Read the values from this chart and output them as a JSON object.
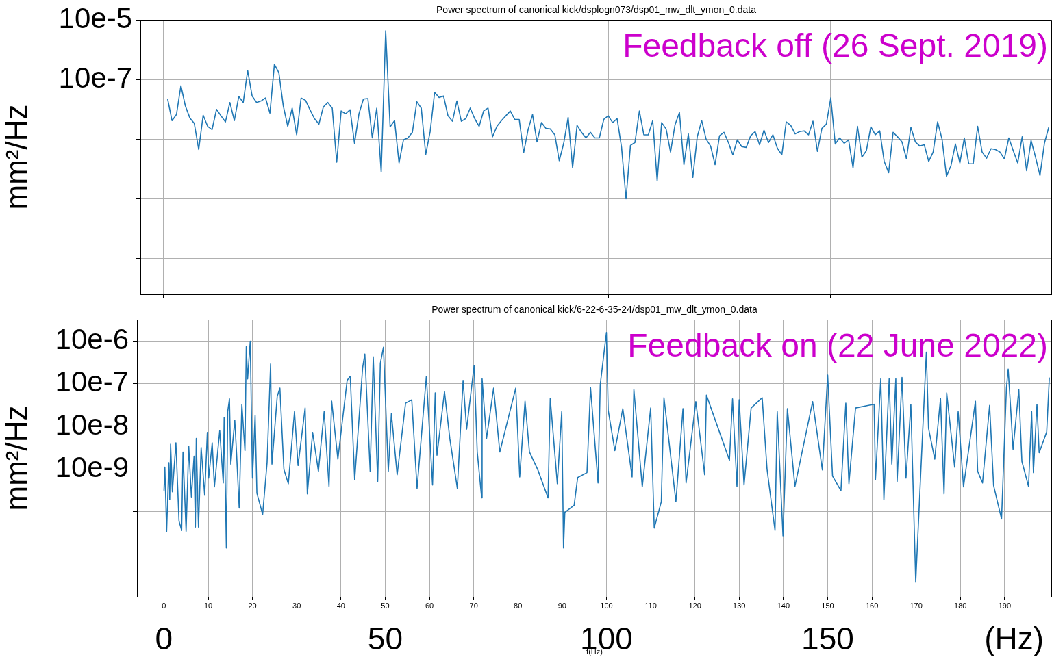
{
  "chart_data": [
    {
      "type": "line",
      "title": "Power spectrum of canonical kick/dsplogn073/dsp01_mw_dlt_ymon_0.data",
      "subtitle": "Feedback off (26 Sept. 2019)",
      "ylabel": "mm²/Hz",
      "color": "#1f77b4",
      "log": true,
      "grid": true,
      "tick_labels": "y",
      "categories": [
        null,
        null,
        null,
        null,
        null,
        null,
        null,
        null,
        null,
        null,
        null,
        null,
        null,
        null,
        null,
        null,
        null,
        null,
        null,
        null,
        null,
        null,
        null,
        null,
        null,
        null,
        null,
        null,
        null,
        null,
        null,
        null,
        null,
        null,
        null,
        null,
        null,
        null,
        null,
        null,
        null,
        null,
        null,
        null,
        null,
        null,
        null,
        null,
        null,
        null,
        null,
        null,
        null,
        null,
        null,
        null,
        null,
        null,
        null,
        null,
        null,
        null,
        null,
        null,
        null,
        null,
        null,
        null,
        null,
        null,
        null,
        null,
        null,
        null,
        null,
        null,
        null,
        null,
        null,
        null,
        null,
        null,
        null,
        null,
        null,
        null,
        null,
        null,
        null,
        null,
        null,
        null,
        null,
        null,
        null,
        null,
        null,
        null,
        null,
        null,
        null,
        null,
        null,
        null,
        null,
        null,
        null,
        null,
        null,
        null,
        null,
        null,
        null,
        null,
        null,
        null,
        null,
        null,
        null,
        null,
        null,
        null,
        null,
        null,
        null,
        null,
        null,
        null,
        null,
        null,
        null,
        null,
        null,
        null,
        null,
        null,
        null,
        null,
        null,
        null,
        null,
        null,
        null,
        null,
        null,
        null,
        null,
        null,
        null,
        null,
        null,
        null,
        null,
        null,
        null,
        null,
        null,
        null,
        null,
        null,
        null,
        null,
        null,
        null,
        null,
        null,
        null,
        null,
        null,
        null,
        null,
        null,
        null,
        null,
        null,
        null,
        null,
        null,
        null,
        null,
        null,
        null,
        null,
        null,
        null,
        null,
        null,
        null,
        null,
        null,
        null,
        null,
        null,
        null,
        null,
        null,
        null,
        null,
        null
      ],
      "ylim": [
        6.3e-14,
        0.0001
      ],
      "yticks": [
        {
          "value": 0.0001,
          "label": "10e-5"
        },
        {
          "value": 1e-06,
          "label": "10e-7"
        },
        {
          "value": 1e-08,
          "label": null
        },
        {
          "value": 1e-10,
          "label": null
        },
        {
          "value": 1e-12,
          "label": null
        }
      ],
      "values": [
        2.3e-07,
        4.2e-08,
        6.7e-08,
        6.2e-07,
        1.3e-07,
        5.2e-08,
        3.4e-08,
        4.5e-09,
        6.4e-08,
        2.7e-08,
        2.1e-08,
        1e-07,
        6.1e-08,
        3.8e-08,
        1.7e-07,
        4.2e-08,
        2.7e-07,
        1.7e-07,
        2e-06,
        2.8e-07,
        1.7e-07,
        1.9e-07,
        2.4e-07,
        7.5e-08,
        3.2e-06,
        1.7e-06,
        1.3e-07,
        2.7e-08,
        1.1e-07,
        1.4e-08,
        2.4e-07,
        2e-07,
        9.7e-08,
        4.9e-08,
        3.2e-08,
        1.2e-07,
        1.7e-07,
        1.1e-07,
        1.7e-09,
        8.8e-08,
        7.1e-08,
        9.7e-08,
        7.3e-09,
        7.1e-08,
        2.2e-07,
        2.3e-07,
        1.1e-08,
        1.1e-07,
        7.9e-10,
        4.3e-05,
        2.6e-08,
        4.2e-08,
        1.6e-09,
        9.5e-09,
        1.1e-08,
        1.7e-08,
        1.8e-07,
        1.1e-07,
        3.1e-09,
        1.8e-08,
        3.7e-07,
        2.5e-07,
        2.8e-07,
        6.1e-08,
        4e-08,
        1.9e-07,
        4e-08,
        4.9e-08,
        1.1e-07,
        4.9e-08,
        2.7e-08,
        8.8e-08,
        1.1e-07,
        1.2e-08,
        2.7e-08,
        4.2e-08,
        6.1e-08,
        8.8e-08,
        4.6e-08,
        4.6e-08,
        3.5e-09,
        2.1e-08,
        6.7e-08,
        8.1e-09,
        3.6e-08,
        2.3e-08,
        2.2e-08,
        1.4e-08,
        1.9e-09,
        7.3e-09,
        5.4e-08,
        1.1e-09,
        2.9e-08,
        1.7e-08,
        1.1e-08,
        1.7e-08,
        1.1e-08,
        1.1e-08,
        4.6e-08,
        6.1e-08,
        3.6e-08,
        4.9e-08,
        5.3e-09,
        1e-10,
        6.2e-09,
        7.7e-09,
        8.8e-08,
        1.4e-08,
        1.4e-08,
        4.2e-08,
        4e-10,
        3.6e-08,
        2.2e-08,
        3.7e-09,
        3e-08,
        7.9e-08,
        1.4e-09,
        1.5e-08,
        5.2e-10,
        1.2e-08,
        4.2e-08,
        1e-08,
        5.9e-09,
        1.4e-09,
        1.3e-08,
        1.7e-08,
        7.7e-09,
        3e-09,
        9.5e-09,
        5.6e-09,
        5.3e-09,
        1.3e-08,
        1.8e-08,
        6.5e-09,
        2e-08,
        7.7e-09,
        1.4e-08,
        5e-09,
        3e-09,
        3.8e-08,
        2.9e-08,
        1.5e-08,
        1.8e-08,
        1.9e-08,
        1.4e-08,
        4e-08,
        3.9e-09,
        2.3e-08,
        3.2e-08,
        2.4e-07,
        6.9e-09,
        1.1e-08,
        7.3e-09,
        9.5e-09,
        1.1e-09,
        2.7e-08,
        2.5e-09,
        4.1e-09,
        2.6e-08,
        1.4e-08,
        1.9e-08,
        1.8e-09,
        7.5e-10,
        1.7e-08,
        1.2e-08,
        8.1e-09,
        2.2e-09,
        2.5e-08,
        8.1e-09,
        5.9e-09,
        6.5e-09,
        1.8e-09,
        3.7e-09,
        3.8e-08,
        1e-08,
        5.7e-10,
        1.3e-09,
        6.9e-09,
        1.6e-09,
        1.1e-08,
        1.5e-09,
        1.5e-09,
        2.7e-08,
        3.7e-09,
        2.3e-09,
        4.8e-09,
        4.5e-09,
        3.7e-09,
        2.2e-09,
        1.1e-08,
        4.1e-09,
        1.6e-09,
        1.2e-08,
        8.8e-10,
        9e-09,
        2.5e-09,
        6.1e-10,
        7.3e-09,
        2.6e-08
      ]
    },
    {
      "type": "line",
      "title": "Power spectrum of canonical kick/6-22-6-35-24/dsp01_mw_dlt_ymon_0.data",
      "subtitle": "Feedback on (22 June 2022)",
      "xlabel": "f(Hz)",
      "ylabel": "mm²/Hz",
      "color": "#1f77b4",
      "log": true,
      "grid": true,
      "annotations": [
        "0",
        "50",
        "100",
        "150",
        "(Hz)"
      ],
      "xlim": [
        -6.1,
        200.7
      ],
      "xticks": [
        0,
        10,
        20,
        30,
        40,
        50,
        60,
        70,
        80,
        90,
        100,
        110,
        120,
        130,
        140,
        150,
        160,
        170,
        180,
        190
      ],
      "ylim": [
        1e-11,
        3.2e-05
      ],
      "yticks": [
        {
          "value": 1e-05,
          "label": "10e-6"
        },
        {
          "value": 1e-06,
          "label": "10e-7"
        },
        {
          "value": 1e-07,
          "label": "10e-8"
        },
        {
          "value": 1e-08,
          "label": "10e-9"
        },
        {
          "value": 1e-09,
          "label": null
        },
        {
          "value": 1e-10,
          "label": null
        }
      ],
      "x": [
        0,
        0.2,
        0.6,
        1.1,
        1.3,
        1.5,
        1.9,
        2.7,
        3.4,
        4.0,
        4.3,
        5.0,
        5.6,
        6.2,
        6.8,
        7.1,
        7.3,
        7.8,
        8.4,
        9.2,
        9.8,
        10.1,
        10.9,
        11.4,
        12.6,
        13.4,
        13.6,
        14.1,
        14.4,
        14.8,
        15.1,
        16.0,
        16.4,
        17.0,
        17.6,
        18.3,
        18.6,
        18.9,
        19.5,
        20.0,
        20.6,
        21.0,
        22.3,
        23.3,
        24.1,
        24.4,
        25.6,
        26.2,
        27.1,
        28.1,
        29.5,
        30.3,
        31.9,
        32.4,
        33.6,
        34.9,
        36.2,
        37.3,
        37.9,
        39.3,
        41.4,
        42.1,
        43.1,
        44.9,
        45.4,
        46.6,
        47.3,
        48.3,
        48.9,
        49.6,
        50.7,
        51.4,
        52.7,
        54.6,
        56.0,
        57.2,
        59.3,
        60.7,
        61.3,
        61.7,
        63.4,
        64.6,
        66.3,
        67.6,
        68.4,
        70.1,
        70.8,
        71.8,
        71.9,
        72.9,
        74.5,
        75.9,
        79.5,
        80.4,
        81.6,
        82.6,
        84.5,
        86.8,
        87.3,
        88.9,
        89.9,
        90.3,
        90.6,
        92.7,
        93.5,
        95.6,
        96.4,
        98.1,
        98.6,
        100.0,
        100.4,
        101.9,
        103.7,
        105.8,
        106.2,
        108.1,
        110.0,
        110.8,
        112.4,
        113.0,
        115.7,
        117.3,
        118.0,
        120.2,
        122.2,
        122.6,
        127.8,
        128.5,
        129.5,
        130.0,
        131.1,
        132.7,
        135.2,
        136.3,
        138.1,
        138.6,
        139.9,
        140.9,
        142.6,
        146.6,
        148.8,
        150.0,
        151.1,
        153.0,
        154.1,
        154.8,
        156.3,
        160.5,
        160.8,
        162.0,
        162.7,
        163.9,
        164.5,
        165.4,
        165.7,
        166.8,
        167.7,
        168.8,
        169.9,
        171.8,
        172.3,
        172.8,
        174.2,
        175.5,
        176.3,
        176.9,
        178.7,
        179.5,
        180.7,
        183.4,
        183.9,
        185.0,
        186.6,
        187.5,
        189.3,
        190.4,
        190.8,
        191.4,
        191.9,
        193.2,
        193.9,
        195.4,
        196.1,
        196.5,
        197.3,
        197.8,
        199.5,
        200.1
      ],
      "values": [
        3.1e-09,
        1.1e-08,
        3.4e-10,
        1.4e-08,
        1.9e-09,
        3.8e-08,
        2.9e-09,
        4.1e-08,
        6e-10,
        3.6e-10,
        2.5e-08,
        3.4e-10,
        3.4e-08,
        2.2e-09,
        2e-08,
        4.3e-10,
        5.2e-08,
        4.3e-10,
        3.2e-08,
        2.4e-09,
        7.2e-08,
        6.1e-09,
        4.1e-08,
        3.8e-09,
        8e-08,
        4.7e-09,
        1.6e-07,
        1.4e-10,
        2.2e-07,
        4.4e-07,
        1.3e-08,
        1.4e-07,
        2.4e-08,
        1.2e-09,
        3.3e-07,
        2.7e-08,
        7.4e-06,
        1.3e-06,
        1e-05,
        6.1e-09,
        1.8e-07,
        2.7e-09,
        8.6e-10,
        1.4e-08,
        2.9e-06,
        1.3e-08,
        5.1e-07,
        7.9e-07,
        9.8e-09,
        4.5e-09,
        2.2e-07,
        1.2e-08,
        2.7e-07,
        2.6e-09,
        7.2e-08,
        8.8e-09,
        2.2e-07,
        3.9e-09,
        3.9e-07,
        1.7e-08,
        1.2e-06,
        1.5e-06,
        5.6e-09,
        2.4e-06,
        5e-06,
        8.8e-09,
        4.3e-06,
        5.1e-09,
        3e-06,
        7.2e-06,
        8.8e-09,
        2e-07,
        7.3e-09,
        3.5e-07,
        4.2e-07,
        3.5e-09,
        1.5e-06,
        4.2e-09,
        6.1e-07,
        2.1e-08,
        6.5e-07,
        5.2e-08,
        3.5e-09,
        1.2e-06,
        8.6e-08,
        2.7e-06,
        2.5e-08,
        2.1e-09,
        1.3e-06,
        5.2e-08,
        7.9e-07,
        2.5e-08,
        7.9e-07,
        6.5e-09,
        3.9e-07,
        2.5e-08,
        9.5e-09,
        2.1e-09,
        4.5e-07,
        4.5e-09,
        2.2e-07,
        1.4e-10,
        9.6e-10,
        1.4e-09,
        6.3e-09,
        8.2e-09,
        8.2e-07,
        4.7e-09,
        9.5e-07,
        1.6e-05,
        2.4e-07,
        2.7e-08,
        2.6e-07,
        6.5e-09,
        7.3e-07,
        3.8e-09,
        2.7e-07,
        4.1e-10,
        1.7e-09,
        4.7e-07,
        1.7e-09,
        2.6e-07,
        4.7e-09,
        3.8e-07,
        7.3e-09,
        5.4e-07,
        1.6e-08,
        4.4e-07,
        3.9e-09,
        4.2e-07,
        4.2e-09,
        2.7e-07,
        4.7e-07,
        9.8e-09,
        3.6e-10,
        2.2e-07,
        2.7e-10,
        2.6e-07,
        3.9e-09,
        3.8e-07,
        9.5e-09,
        1.6e-06,
        6.8e-09,
        3.1e-09,
        3.5e-07,
        4.5e-09,
        2.7e-07,
        3.3e-07,
        5.6e-09,
        1.3e-06,
        1.9e-09,
        1.3e-06,
        1.3e-08,
        1.3e-06,
        5.1e-09,
        1.4e-06,
        6.1e-09,
        3.3e-07,
        2.2e-11,
        4.2e-07,
        5.5e-06,
        9e-08,
        1.7e-08,
        4.5e-07,
        2.6e-09,
        6.1e-07,
        1.1e-08,
        2.2e-07,
        3.8e-09,
        3.9e-07,
        8.8e-09,
        4.7e-09,
        3.1e-07,
        4.1e-09,
        6.7e-10,
        7.9e-07,
        2.2e-06,
        2.2e-07,
        2.9e-08,
        7.3e-07,
        1.5e-08,
        3.9e-09,
        2.2e-07,
        8.2e-09,
        3.3e-07,
        2.4e-08,
        7.4e-08,
        1.4e-06
      ]
    }
  ]
}
